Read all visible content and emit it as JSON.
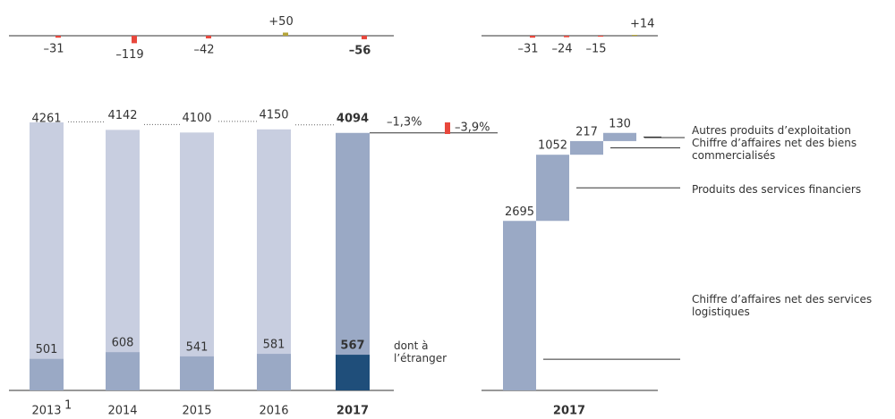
{
  "chart_data": [
    {
      "type": "overlay-bar",
      "categories": [
        "2013",
        "2014",
        "2015",
        "2016",
        "2017"
      ],
      "category_footnotes": [
        "1",
        null,
        null,
        null,
        null
      ],
      "highlight_index": 4,
      "series": [
        {
          "values": [
            4261,
            4142,
            4100,
            4150,
            4094
          ],
          "color": "#c8cee0",
          "highlight_color": "#9aa9c5"
        },
        {
          "name": "dont à l’étranger",
          "values": [
            501,
            608,
            541,
            581,
            567
          ],
          "color": "#9aa9c5",
          "highlight_color": "#1f4e7a"
        }
      ],
      "changes": {
        "values": [
          -31,
          -119,
          -42,
          50,
          -56
        ],
        "value_labels": [
          "–31",
          "–119",
          "–42",
          "+50",
          "–56"
        ],
        "negative_color": "#e8473c",
        "positive_color": "#b5a53a"
      },
      "annotations": [
        {
          "value": -1.3,
          "label": "–1,3%"
        },
        {
          "value": -3.9,
          "label": "–3,9%"
        }
      ]
    },
    {
      "type": "waterfall",
      "x_label": "2017",
      "categories": [
        "Chiffre d’affaires net des services logistiques",
        "Produits des services financiers",
        "Chiffre d’affaires net des biens commercialisés",
        "Autres produits d’exploitation"
      ],
      "values": [
        2695,
        1052,
        217,
        130
      ],
      "color": "#9aa9c5",
      "changes": {
        "values": [
          -31,
          -24,
          -15,
          14
        ],
        "value_labels": [
          "–31",
          "–24",
          "–15",
          "+14"
        ],
        "negative_color": "#e8473c",
        "positive_color": "#b5a53a"
      }
    }
  ]
}
